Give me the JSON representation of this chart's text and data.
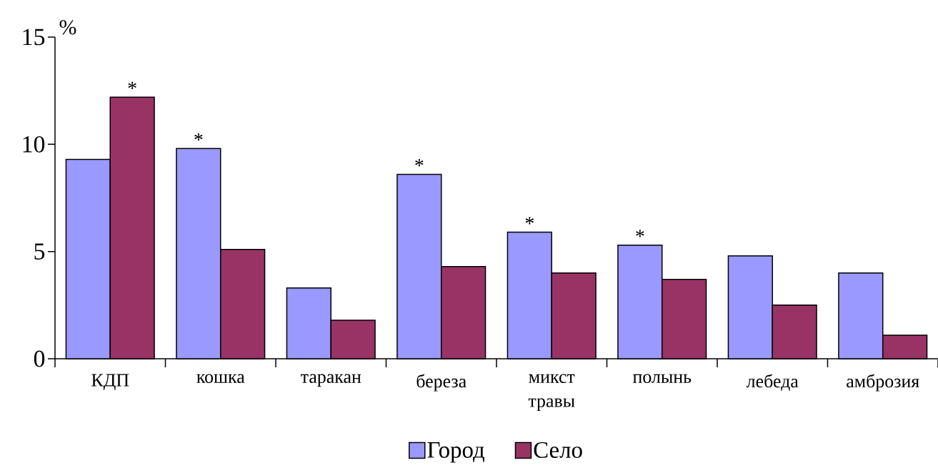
{
  "chart_data": {
    "type": "bar",
    "ylabel": "%",
    "categories": [
      "КДП",
      "кошка",
      "таракан",
      "береза",
      "микст травы",
      "полынь",
      "лебеда",
      "амброзия"
    ],
    "series": [
      {
        "name": "Город",
        "color": "#9999ff",
        "values": [
          9.3,
          9.8,
          3.3,
          8.6,
          5.9,
          5.3,
          4.8,
          4.0
        ]
      },
      {
        "name": "Село",
        "color": "#993366",
        "values": [
          12.2,
          5.1,
          1.8,
          4.3,
          4.0,
          3.7,
          2.5,
          1.1
        ]
      }
    ],
    "ylim": [
      0,
      15
    ],
    "yticks": [
      0,
      5,
      10,
      15
    ],
    "grid": false,
    "legend": "bottom",
    "annotations": [
      {
        "text": "*",
        "x": "КДП",
        "y": 12.2
      },
      {
        "text": "*",
        "x": "кошка",
        "y": 9.8
      },
      {
        "text": "*",
        "x": "береза",
        "y": 8.6
      },
      {
        "text": "*",
        "x": "микст травы",
        "y": 5.9
      },
      {
        "text": "*",
        "x": "полынь",
        "y": 5.3
      }
    ]
  }
}
